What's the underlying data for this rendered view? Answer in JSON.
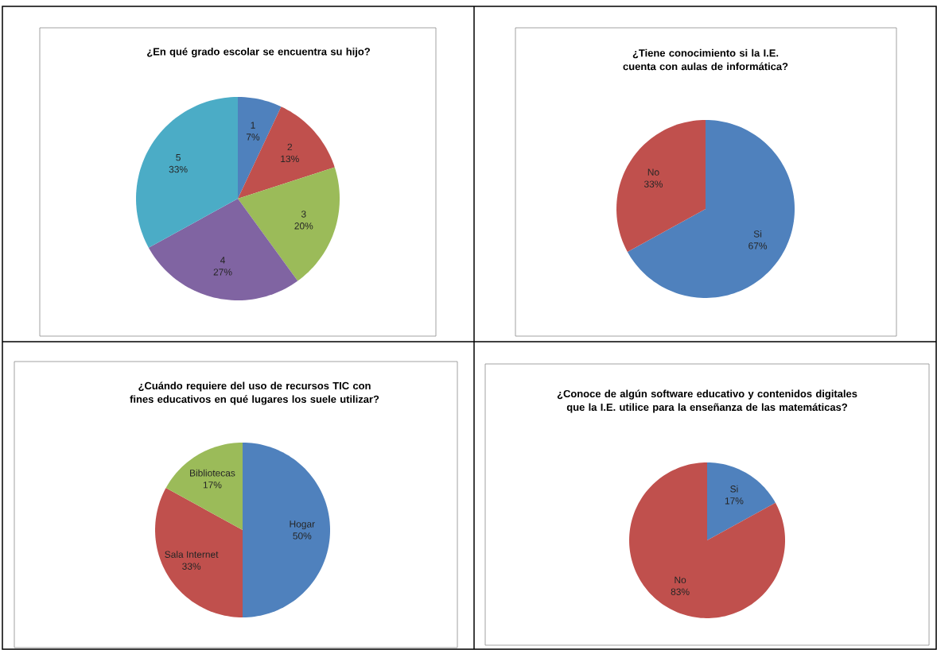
{
  "chart_data": [
    {
      "type": "pie",
      "title": "¿En qué grado escolar se encuentra su hijo?",
      "categories": [
        "1",
        "2",
        "3",
        "4",
        "5"
      ],
      "values": [
        7,
        13,
        20,
        27,
        33
      ],
      "colors": [
        "#4f81bd",
        "#c0504d",
        "#9bbb59",
        "#8064a2",
        "#4bacc6"
      ],
      "value_labels": [
        "7%",
        "13%",
        "20%",
        "27%",
        "33%"
      ]
    },
    {
      "type": "pie",
      "title": "¿Tiene conocimiento si la I.E. cuenta con aulas de informática?",
      "categories": [
        "Si",
        "No"
      ],
      "values": [
        67,
        33
      ],
      "colors": [
        "#4f81bd",
        "#c0504d"
      ],
      "value_labels": [
        "67%",
        "33%"
      ]
    },
    {
      "type": "pie",
      "title": "¿Cuándo requiere del uso de recursos TIC con fines educativos en qué lugares los suele utilizar?",
      "categories": [
        "Hogar",
        "Sala Internet",
        "Bibliotecas"
      ],
      "values": [
        50,
        33,
        17
      ],
      "colors": [
        "#4f81bd",
        "#c0504d",
        "#9bbb59"
      ],
      "value_labels": [
        "50%",
        "33%",
        "17%"
      ]
    },
    {
      "type": "pie",
      "title": "¿Conoce de algún software educativo y contenidos digitales que la I.E. utilice para la enseñanza de las matemáticas?",
      "categories": [
        "Si",
        "No"
      ],
      "values": [
        17,
        83
      ],
      "colors": [
        "#4f81bd",
        "#c0504d"
      ],
      "value_labels": [
        "17%",
        "83%"
      ]
    }
  ]
}
